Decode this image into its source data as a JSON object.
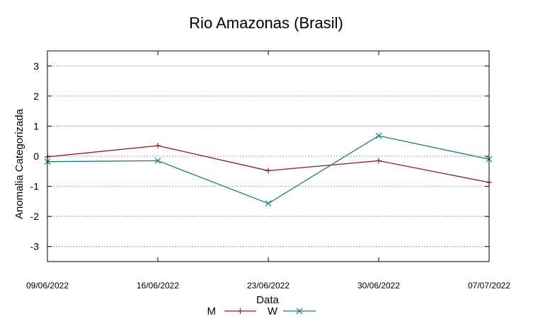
{
  "chart_data": {
    "type": "line",
    "title": "Rio Amazonas (Brasil)",
    "xlabel": "Data",
    "ylabel": "Anomalia Categorizada",
    "categories": [
      "09/06/2022",
      "16/06/2022",
      "23/06/2022",
      "30/06/2022",
      "07/07/2022"
    ],
    "ylim": [
      -3.5,
      3.5
    ],
    "yticks": [
      3,
      2,
      1,
      0,
      -1,
      -2,
      -3
    ],
    "ytick_labels": [
      "3",
      "2",
      "1",
      "0",
      "-1",
      "-2",
      "-3"
    ],
    "grid": true,
    "legend": "bottom-center",
    "series": [
      {
        "name": "M",
        "color": "#8b1a1a",
        "marker": "plus",
        "values": [
          -0.02,
          0.35,
          -0.48,
          -0.15,
          -0.87
        ]
      },
      {
        "name": "W",
        "color": "#1a7a7a",
        "marker": "x",
        "values": [
          -0.18,
          -0.15,
          -1.57,
          0.68,
          -0.1
        ]
      }
    ]
  }
}
